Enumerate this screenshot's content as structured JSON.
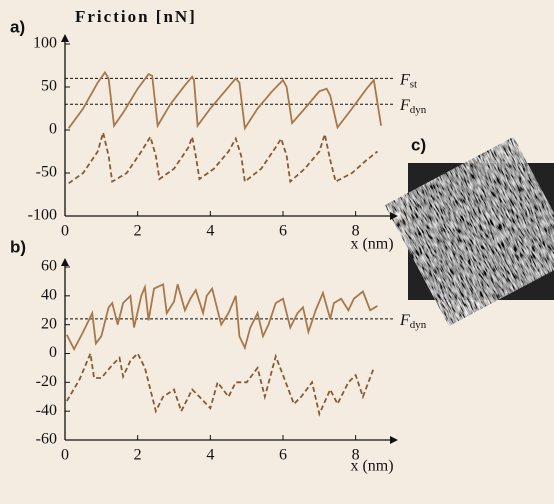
{
  "chart_data": [
    {
      "type": "line",
      "panel_label": "a)",
      "title": "Friction [nN]",
      "x_label": "x (nm)",
      "xlim": [
        0,
        9
      ],
      "xticks": [
        0,
        2,
        4,
        6,
        8
      ],
      "ylim": [
        -100,
        100
      ],
      "yticks": [
        -100,
        -50,
        0,
        50,
        100
      ],
      "series": [
        {
          "color": "#a8784a",
          "line_style": "solid",
          "x": [
            0.1,
            0.5,
            0.9,
            1.1,
            1.2,
            1.35,
            1.6,
            2.0,
            2.3,
            2.4,
            2.55,
            2.9,
            3.3,
            3.5,
            3.55,
            3.65,
            4.0,
            4.4,
            4.7,
            4.8,
            4.95,
            5.3,
            5.7,
            6.0,
            6.1,
            6.25,
            6.6,
            7.0,
            7.2,
            7.3,
            7.5,
            7.9,
            8.3,
            8.5,
            8.7
          ],
          "values": [
            2,
            25,
            55,
            67,
            60,
            5,
            20,
            48,
            65,
            63,
            5,
            30,
            52,
            62,
            58,
            5,
            25,
            45,
            60,
            55,
            2,
            25,
            45,
            58,
            50,
            8,
            25,
            45,
            48,
            40,
            3,
            25,
            48,
            58,
            5
          ]
        },
        {
          "color": "#8a5a32",
          "line_style": "dashed",
          "x": [
            0.1,
            0.5,
            0.9,
            1.05,
            1.2,
            1.3,
            1.7,
            2.1,
            2.35,
            2.5,
            2.6,
            3.0,
            3.4,
            3.5,
            3.6,
            3.7,
            4.1,
            4.5,
            4.7,
            4.85,
            4.95,
            5.4,
            5.8,
            5.95,
            6.1,
            6.2,
            6.6,
            7.0,
            7.15,
            7.3,
            7.45,
            7.9,
            8.3,
            8.6
          ],
          "values": [
            -62,
            -50,
            -25,
            -3,
            -30,
            -60,
            -50,
            -25,
            -8,
            -30,
            -57,
            -45,
            -20,
            -8,
            -30,
            -57,
            -45,
            -25,
            -10,
            -30,
            -60,
            -45,
            -20,
            -10,
            -30,
            -60,
            -45,
            -25,
            -5,
            -35,
            -60,
            -50,
            -35,
            -25
          ]
        }
      ],
      "reference_lines": [
        {
          "value": 60,
          "label": "F",
          "subscript": "st"
        },
        {
          "value": 30,
          "label": "F",
          "subscript": "dyn"
        }
      ]
    },
    {
      "type": "line",
      "panel_label": "b)",
      "x_label": "x (nm)",
      "xlim": [
        0,
        9
      ],
      "xticks": [
        0,
        2,
        4,
        6,
        8
      ],
      "ylim": [
        -60,
        60
      ],
      "yticks": [
        -60,
        -40,
        -20,
        0,
        20,
        40,
        60
      ],
      "series": [
        {
          "color": "#a8784a",
          "line_style": "solid",
          "x": [
            0.05,
            0.25,
            0.5,
            0.75,
            0.85,
            1.0,
            1.2,
            1.3,
            1.45,
            1.6,
            1.8,
            1.9,
            2.1,
            2.2,
            2.3,
            2.45,
            2.7,
            2.8,
            3.0,
            3.1,
            3.3,
            3.45,
            3.6,
            3.8,
            3.9,
            4.05,
            4.3,
            4.5,
            4.7,
            4.8,
            4.95,
            5.1,
            5.3,
            5.45,
            5.6,
            5.8,
            6.0,
            6.2,
            6.4,
            6.55,
            6.7,
            6.9,
            7.1,
            7.3,
            7.4,
            7.6,
            7.8,
            7.95,
            8.2,
            8.4,
            8.6
          ],
          "values": [
            13,
            3,
            15,
            28,
            7,
            12,
            32,
            35,
            20,
            35,
            40,
            18,
            40,
            46,
            23,
            45,
            48,
            28,
            36,
            48,
            30,
            38,
            44,
            28,
            40,
            45,
            20,
            28,
            40,
            12,
            4,
            18,
            28,
            12,
            20,
            35,
            38,
            18,
            28,
            32,
            15,
            30,
            42,
            24,
            35,
            38,
            30,
            38,
            43,
            30,
            33
          ]
        },
        {
          "color": "#8a5a32",
          "line_style": "dashed",
          "x": [
            0.05,
            0.4,
            0.7,
            0.8,
            1.0,
            1.3,
            1.5,
            1.6,
            1.8,
            2.0,
            2.2,
            2.5,
            2.7,
            3.0,
            3.2,
            3.5,
            3.7,
            4.0,
            4.2,
            4.5,
            4.7,
            5.0,
            5.3,
            5.5,
            5.8,
            6.0,
            6.3,
            6.5,
            6.8,
            7.0,
            7.3,
            7.5,
            7.8,
            8.0,
            8.2,
            8.5
          ],
          "values": [
            -33,
            -18,
            0,
            -17,
            -17,
            -8,
            -3,
            -16,
            -5,
            0,
            -10,
            -40,
            -30,
            -25,
            -40,
            -25,
            -30,
            -38,
            -20,
            -30,
            -20,
            -20,
            -10,
            -30,
            -2,
            -15,
            -35,
            -30,
            -20,
            -42,
            -25,
            -35,
            -20,
            -15,
            -30,
            -10
          ]
        }
      ],
      "reference_lines": [
        {
          "value": 24,
          "label": "F",
          "subscript": "dyn"
        }
      ]
    }
  ],
  "image_panel": {
    "label": "c)"
  }
}
